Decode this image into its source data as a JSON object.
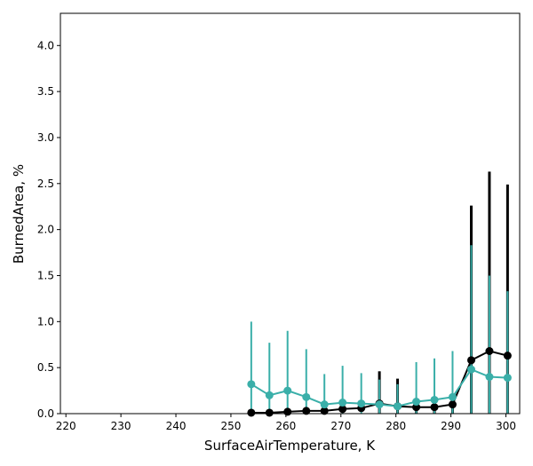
{
  "chart_data": {
    "type": "line",
    "xlabel": "SurfaceAirTemperature,  K",
    "ylabel": "BurnedArea,  %",
    "xlim": [
      219,
      302.5
    ],
    "ylim": [
      0,
      4.35
    ],
    "xticks": [
      220,
      230,
      240,
      250,
      260,
      270,
      280,
      290,
      300
    ],
    "yticks": [
      0.0,
      0.5,
      1.0,
      1.5,
      2.0,
      2.5,
      3.0,
      3.5,
      4.0
    ],
    "xtick_labels": [
      "220",
      "230",
      "240",
      "250",
      "260",
      "270",
      "280",
      "290",
      "300"
    ],
    "ytick_labels": [
      "0.0",
      "0.5",
      "1.0",
      "1.5",
      "2.0",
      "2.5",
      "3.0",
      "3.5",
      "4.0"
    ],
    "grid": false,
    "legend": "none",
    "series": [
      {
        "color": "#000000",
        "x": [
          253.7,
          257.0,
          260.3,
          263.7,
          267.0,
          270.3,
          273.7,
          277.0,
          280.3,
          283.7,
          287.0,
          290.3,
          293.7,
          297.0,
          300.3
        ],
        "y": [
          0.01,
          0.01,
          0.02,
          0.03,
          0.03,
          0.05,
          0.06,
          0.11,
          0.08,
          0.07,
          0.07,
          0.1,
          0.58,
          0.68,
          0.63
        ],
        "err_low": [
          0.0,
          0.0,
          0.0,
          0.0,
          0.0,
          0.0,
          0.0,
          0.11,
          0.08,
          0.07,
          0.07,
          0.1,
          0.58,
          0.68,
          0.63
        ],
        "err_high": [
          0.0,
          0.0,
          0.0,
          0.0,
          0.0,
          0.0,
          0.0,
          0.35,
          0.3,
          0.0,
          0.0,
          0.0,
          1.68,
          1.95,
          1.86
        ]
      },
      {
        "color": "#3aafa9",
        "x": [
          253.7,
          257.0,
          260.3,
          263.7,
          267.0,
          270.3,
          273.7,
          277.0,
          280.3,
          283.7,
          287.0,
          290.3,
          293.7,
          297.0,
          300.3
        ],
        "y": [
          0.32,
          0.2,
          0.25,
          0.18,
          0.1,
          0.12,
          0.11,
          0.1,
          0.08,
          0.13,
          0.15,
          0.18,
          0.48,
          0.4,
          0.39
        ],
        "err_low": [
          0.32,
          0.2,
          0.25,
          0.18,
          0.1,
          0.12,
          0.11,
          0.1,
          0.08,
          0.13,
          0.15,
          0.18,
          0.48,
          0.4,
          0.39
        ],
        "err_high": [
          0.68,
          0.57,
          0.65,
          0.52,
          0.33,
          0.4,
          0.33,
          0.27,
          0.24,
          0.43,
          0.45,
          0.5,
          1.35,
          1.1,
          0.94
        ]
      }
    ]
  }
}
